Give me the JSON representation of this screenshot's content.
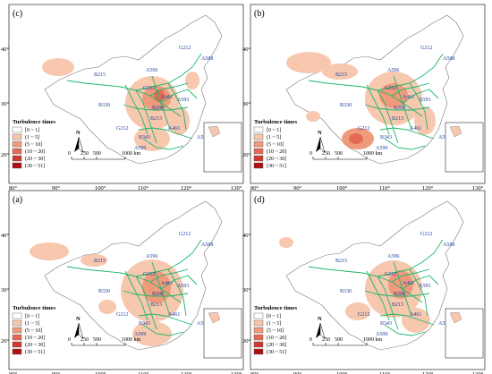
{
  "panels": [
    {
      "tag": "(c)",
      "id": "c"
    },
    {
      "tag": "(b)",
      "id": "b"
    },
    {
      "tag": "(a)",
      "id": "a"
    },
    {
      "tag": "(d)",
      "id": "d"
    }
  ],
  "lon_ticks": [
    "80°",
    "90°",
    "100°",
    "110°",
    "120°",
    "130°"
  ],
  "lat_ticks": [
    "40°",
    "30°",
    "20°"
  ],
  "routes": [
    "G212",
    "A588",
    "A596",
    "B215",
    "G212",
    "A461",
    "A593",
    "B330",
    "B208",
    "B213",
    "G212",
    "A461",
    "B343",
    "A599",
    "A599"
  ],
  "legend": {
    "title": "Turbulence times",
    "classes": [
      {
        "label": "[0 ~ 1]",
        "color": "#ffffff"
      },
      {
        "label": "(1 ~ 5]",
        "color": "#f7c7ae"
      },
      {
        "label": "(5 ~ 10]",
        "color": "#f09a7c"
      },
      {
        "label": "(10 ~ 20]",
        "color": "#e46a55"
      },
      {
        "label": "(20 ~ 30]",
        "color": "#d0382e"
      },
      {
        "label": "(30 ~ 51]",
        "color": "#b30d12"
      }
    ]
  },
  "north_label": "N",
  "scale": {
    "labels": [
      "0",
      "250",
      "500",
      "1000 km"
    ]
  },
  "colors": {
    "route": "#18b86a",
    "region_light": "#f7c7ae",
    "region_mid": "#f09a7c",
    "region_dark": "#e46a55"
  }
}
